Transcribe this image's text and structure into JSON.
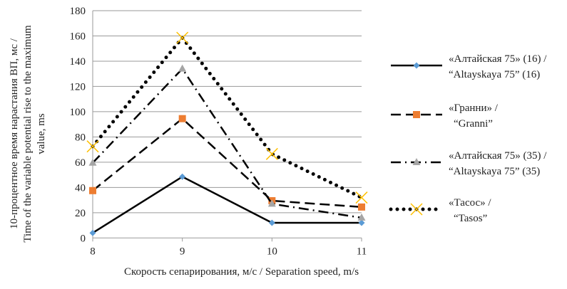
{
  "chart_data": {
    "type": "line",
    "title": "",
    "xlabel": "Скорость сепарирования, м/с / Separation speed, m/s",
    "ylabel_lines": [
      "10-процентное время нарастания ВП, мс /",
      "Time of the variable potential rise to the maximum",
      "value, ms"
    ],
    "x": [
      8,
      9,
      10,
      11
    ],
    "x_tick_labels": [
      "8",
      "9",
      "10",
      "11"
    ],
    "ylim": [
      0,
      180
    ],
    "y_ticks": [
      0,
      20,
      40,
      60,
      80,
      100,
      120,
      140,
      160,
      180
    ],
    "grid": true,
    "legend_placement": "right",
    "series": [
      {
        "name_lines": [
          "«Алтайская 75» (16) /",
          "“Altayskaya 75” (16)"
        ],
        "values": [
          4,
          48.5,
          12,
          12
        ],
        "marker": "diamond",
        "marker_color": "#5b9bd5",
        "dash": "solid"
      },
      {
        "name_lines": [
          "«Гранни» /",
          "“Granni”"
        ],
        "values": [
          37.5,
          94.5,
          29.5,
          24.5
        ],
        "marker": "square",
        "marker_color": "#ed7d31",
        "dash": "dash"
      },
      {
        "name_lines": [
          "«Алтайская 75» (35) /",
          "“Altayskaya 75” (35)"
        ],
        "values": [
          59.5,
          134,
          27,
          16
        ],
        "marker": "triangle",
        "marker_color": "#a5a5a5",
        "dash": "dashdot"
      },
      {
        "name_lines": [
          "«Тасос» /",
          "“Tasos”"
        ],
        "values": [
          72.5,
          158.5,
          66.5,
          32
        ],
        "marker": "x",
        "marker_color": "#ffc000",
        "dash": "dot"
      }
    ]
  }
}
